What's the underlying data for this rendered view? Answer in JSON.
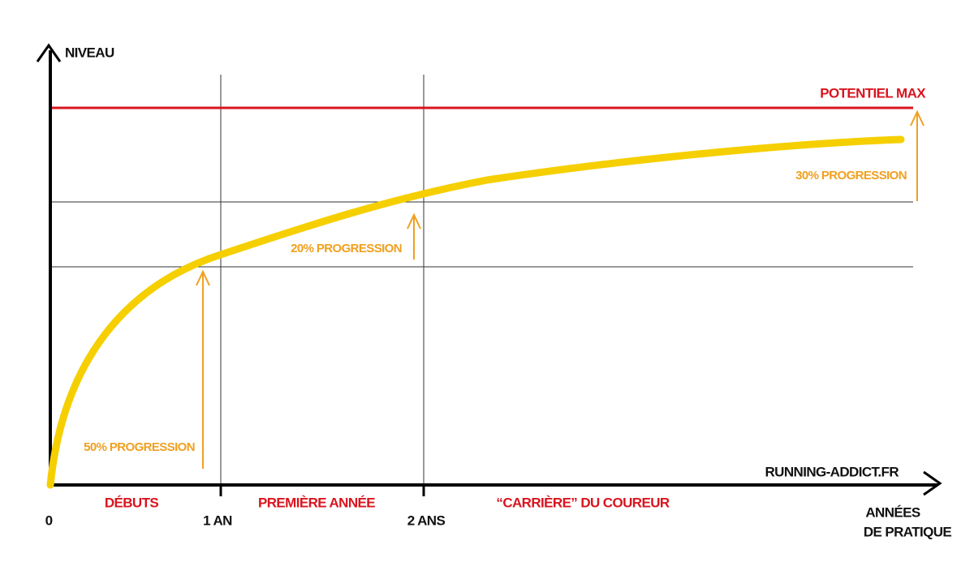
{
  "y_axis_label": "NIVEAU",
  "x_axis_label": [
    "ANNÉES",
    "DE PRATIQUE"
  ],
  "max_label": "POTENTIEL MAX",
  "progressions": [
    "50% PROGRESSION",
    "20% PROGRESSION",
    "30% PROGRESSION"
  ],
  "ticks": [
    "0",
    "1 AN",
    "2 ANS"
  ],
  "phases": [
    "DÉBUTS",
    "PREMIÈRE ANNÉE",
    "“CARRIÈRE” DU COUREUR"
  ],
  "source": "RUNNING-ADDICT.FR"
}
